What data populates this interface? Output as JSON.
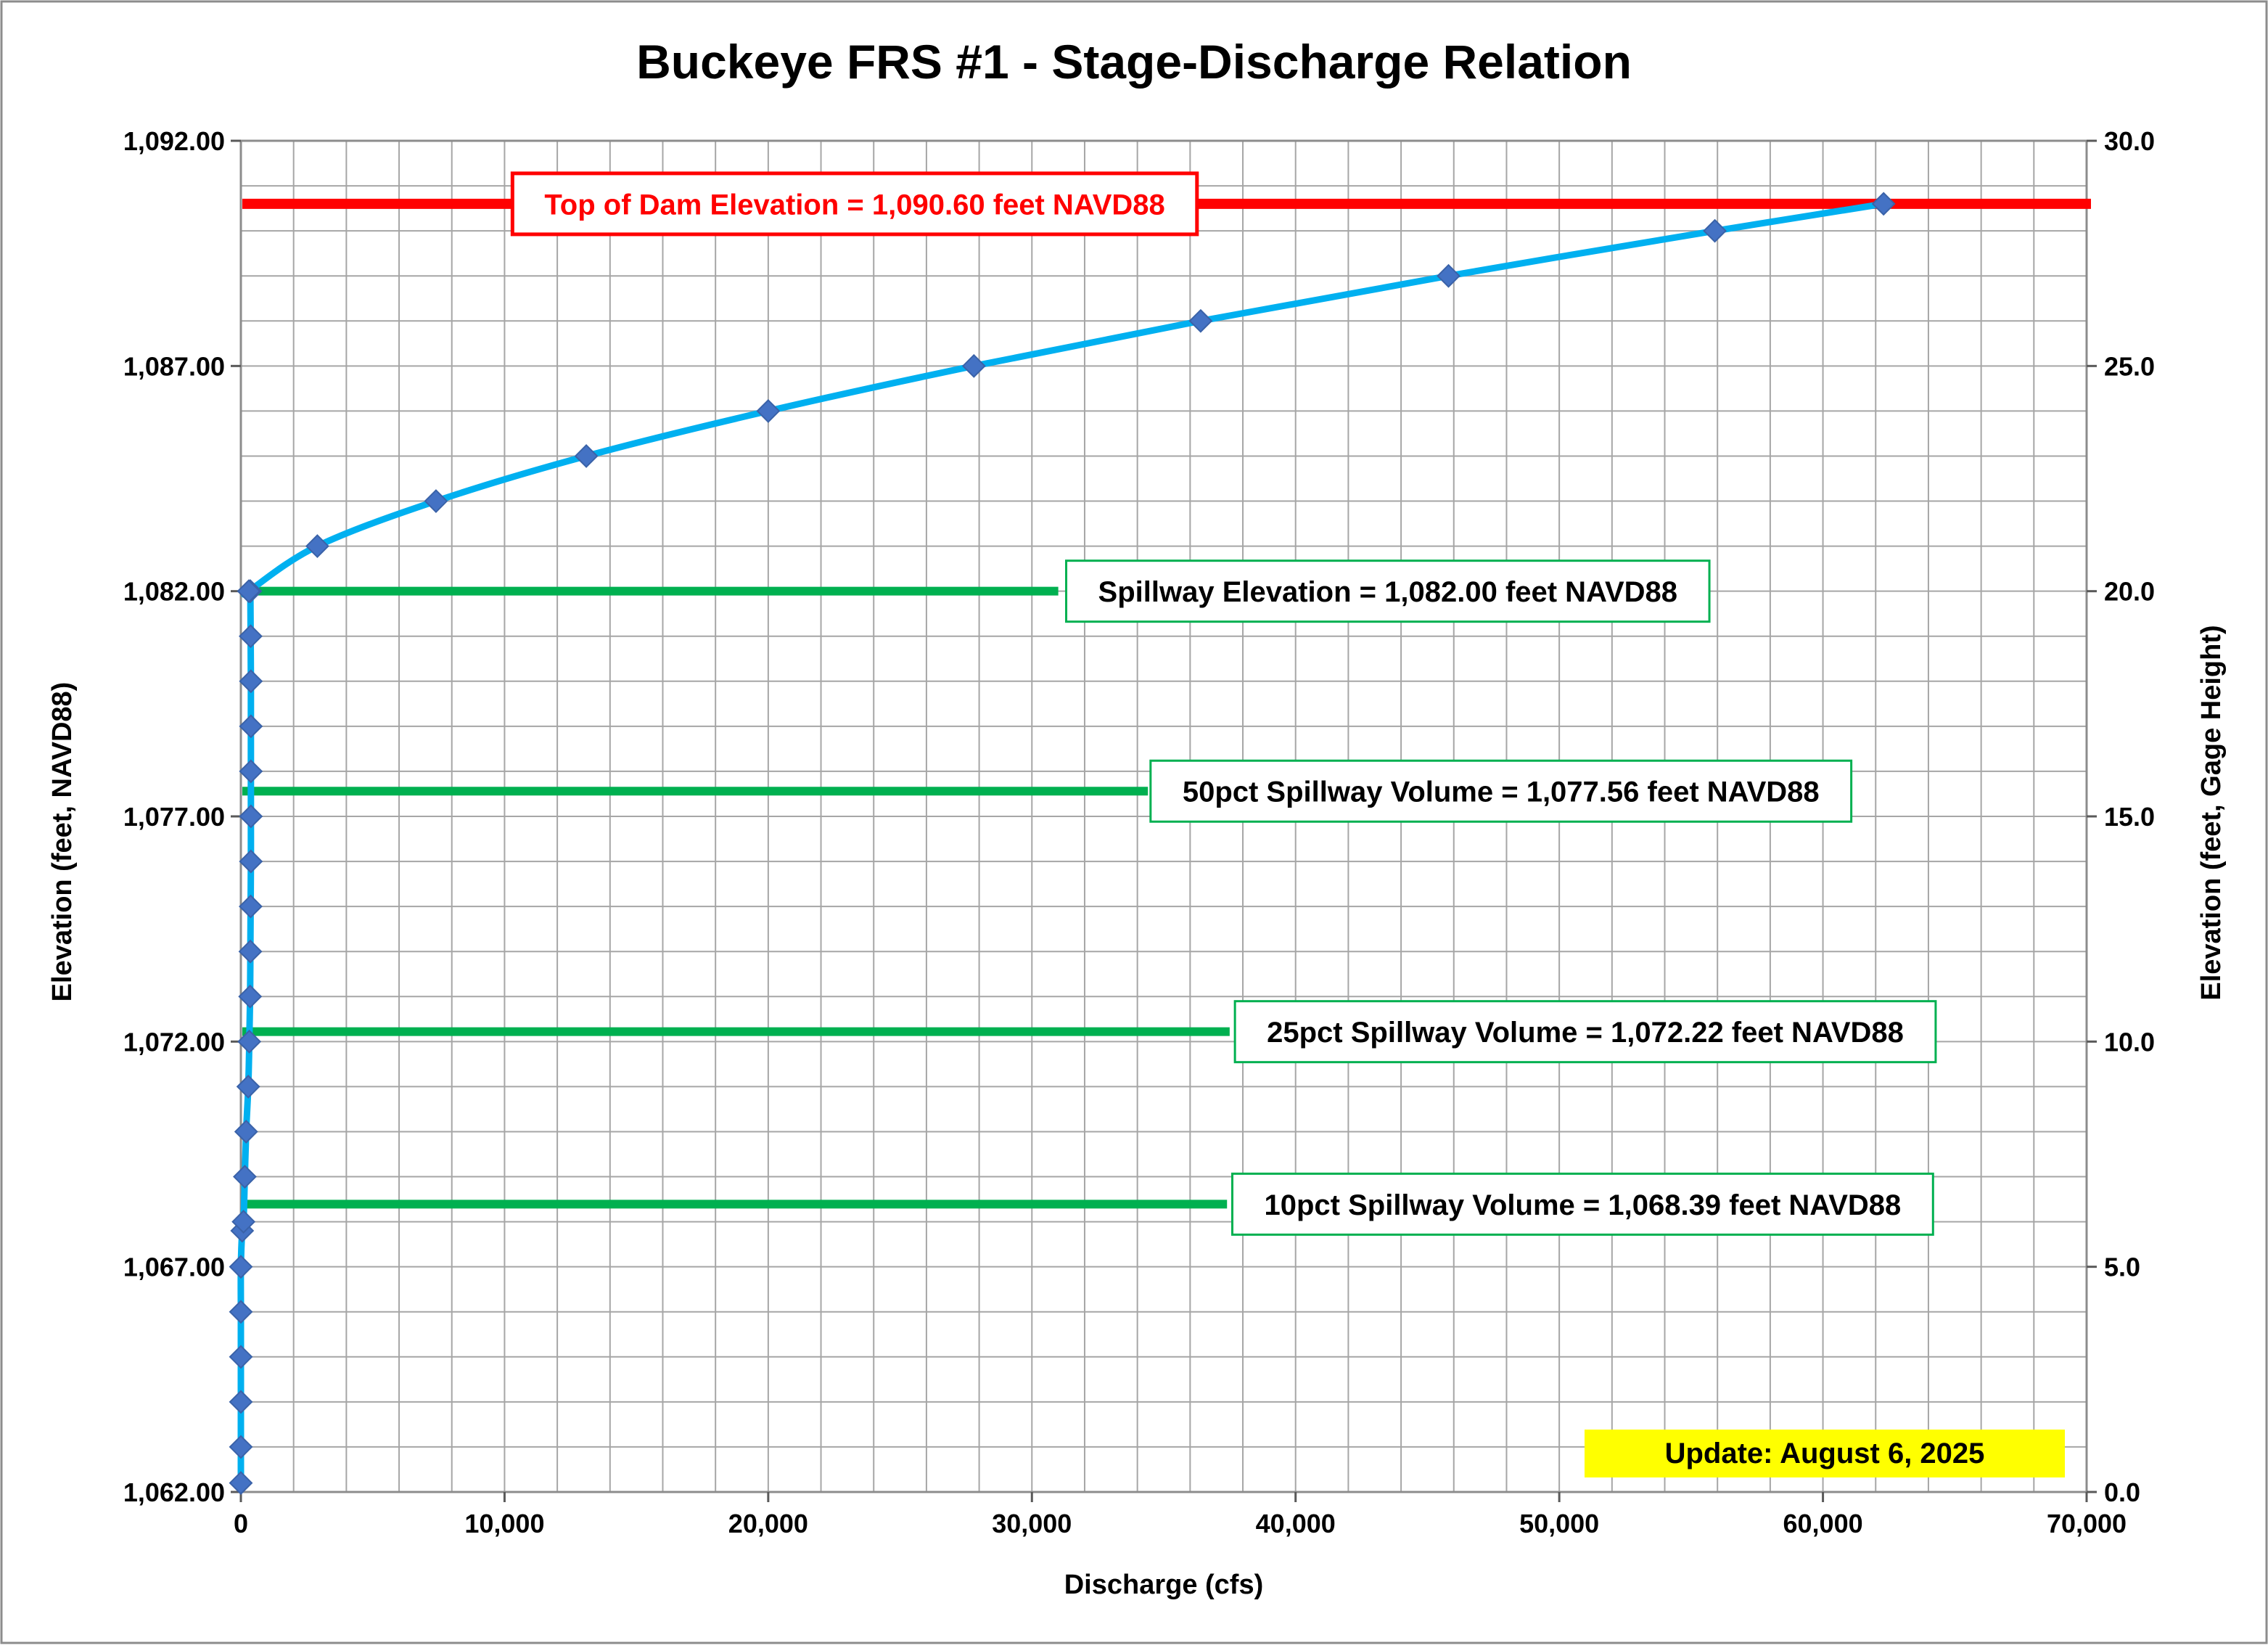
{
  "chart_data": {
    "type": "line",
    "title": "Buckeye FRS #1 - Stage-Discharge Relation",
    "xlabel": "Discharge (cfs)",
    "ylabel": "Elevation (feet, NAVD88)",
    "y2label": "Elevation (feet, Gage Height)",
    "xlim": [
      0,
      70000
    ],
    "ylim": [
      1062,
      1092
    ],
    "y2lim": [
      0,
      30
    ],
    "x_ticks": [
      0,
      10000,
      20000,
      30000,
      40000,
      50000,
      60000,
      70000
    ],
    "x_tick_labels": [
      "0",
      "10,000",
      "20,000",
      "30,000",
      "40,000",
      "50,000",
      "60,000",
      "70,000"
    ],
    "x_minor_step": 2000,
    "y_ticks": [
      1062,
      1067,
      1072,
      1077,
      1082,
      1087,
      1092
    ],
    "y_tick_labels": [
      "1,062.00",
      "1,067.00",
      "1,072.00",
      "1,077.00",
      "1,082.00",
      "1,087.00",
      "1,092.00"
    ],
    "y_minor_step": 1,
    "y2_ticks": [
      0,
      5,
      10,
      15,
      20,
      25,
      30
    ],
    "y2_tick_labels": [
      "0.0",
      "5.0",
      "10.0",
      "15.0",
      "20.0",
      "25.0",
      "30.0"
    ],
    "grid": true,
    "legend": "none",
    "curve_color": "#00B0F0",
    "marker_color": "#4472C4",
    "series": [
      {
        "x": [
          0,
          0,
          0,
          0,
          0,
          0,
          50,
          100,
          150,
          200,
          280,
          320,
          350,
          360,
          370,
          380,
          380,
          380,
          380,
          380,
          370,
          360,
          350,
          300,
          2900,
          7400,
          13100,
          20000,
          27800,
          36400,
          45800,
          55900,
          62300
        ],
        "y": [
          1062.2,
          1063,
          1064,
          1065,
          1066,
          1067,
          1067.8,
          1068,
          1069,
          1070,
          1071,
          1072,
          1073,
          1074,
          1075,
          1076,
          1077,
          1078,
          1079,
          1080,
          1081,
          1082,
          1082,
          1082,
          1083,
          1084,
          1085,
          1086,
          1087,
          1088,
          1089,
          1090,
          1090.6
        ]
      }
    ],
    "reference_lines": [
      {
        "label": "Top of Dam Elevation = 1,090.60 feet NAVD88",
        "y": 1090.6,
        "x_start": 0,
        "x_end": 70000,
        "color": "#FF0000",
        "label_x": 10300
      },
      {
        "label": "Spillway Elevation = 1,082.00 feet NAVD88",
        "y": 1082.0,
        "x_start": 0,
        "x_end": 31000,
        "color": "#00B050",
        "label_x": 31300
      },
      {
        "label": "50pct Spillway Volume = 1,077.56 feet NAVD88",
        "y": 1077.56,
        "x_start": 0,
        "x_end": 34400,
        "color": "#00B050",
        "label_x": 34500
      },
      {
        "label": "25pct Spillway Volume = 1,072.22 feet NAVD88",
        "y": 1072.22,
        "x_start": 0,
        "x_end": 37500,
        "color": "#00B050",
        "label_x": 37700
      },
      {
        "label": "10pct Spillway Volume = 1,068.39 feet NAVD88",
        "y": 1068.39,
        "x_start": 0,
        "x_end": 37400,
        "color": "#00B050",
        "label_x": 37600
      }
    ],
    "annotation": {
      "text": "Update: August 6, 2025",
      "background": "#FFFF00"
    }
  }
}
